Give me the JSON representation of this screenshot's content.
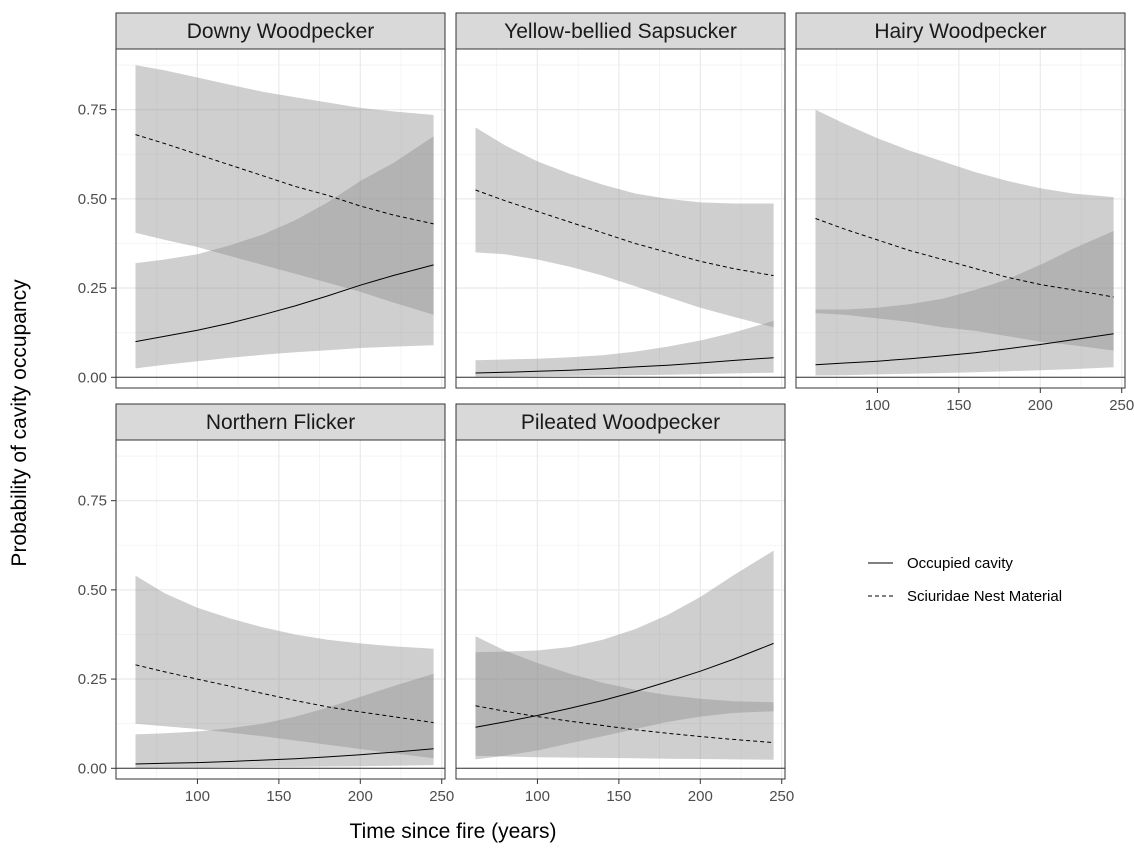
{
  "chart_data": {
    "type": "line",
    "xlabel": "Time since fire (years)",
    "ylabel": "Probability of cavity occupancy",
    "xlim": [
      50,
      252
    ],
    "ylim": [
      -0.03,
      0.92
    ],
    "x_ticks": [
      100,
      150,
      200,
      250
    ],
    "y_ticks": [
      0.0,
      0.25,
      0.5,
      0.75
    ],
    "y_tick_labels": [
      "0.00",
      "0.25",
      "0.50",
      "0.75"
    ],
    "grid": true,
    "legend": {
      "position": "right",
      "entries": [
        {
          "label": "Occupied cavity",
          "linetype": "solid"
        },
        {
          "label": "Sciuridae Nest Material",
          "linetype": "dashed"
        }
      ]
    },
    "x": [
      62,
      80,
      100,
      120,
      140,
      160,
      180,
      200,
      220,
      245
    ],
    "panels": [
      {
        "title": "Downy Woodpecker",
        "series": [
          {
            "name": "Occupied cavity",
            "values": [
              0.1,
              0.115,
              0.132,
              0.152,
              0.175,
              0.2,
              0.228,
              0.258,
              0.285,
              0.315
            ],
            "lower": [
              0.025,
              0.035,
              0.045,
              0.055,
              0.063,
              0.07,
              0.076,
              0.082,
              0.086,
              0.09
            ],
            "upper": [
              0.32,
              0.33,
              0.345,
              0.37,
              0.4,
              0.44,
              0.49,
              0.55,
              0.6,
              0.675
            ]
          },
          {
            "name": "Sciuridae Nest Material",
            "values": [
              0.68,
              0.655,
              0.625,
              0.595,
              0.565,
              0.535,
              0.51,
              0.48,
              0.455,
              0.43
            ],
            "lower": [
              0.405,
              0.385,
              0.365,
              0.34,
              0.315,
              0.29,
              0.265,
              0.24,
              0.21,
              0.175
            ],
            "upper": [
              0.875,
              0.86,
              0.84,
              0.82,
              0.8,
              0.785,
              0.77,
              0.755,
              0.745,
              0.735
            ]
          }
        ]
      },
      {
        "title": "Yellow-bellied Sapsucker",
        "series": [
          {
            "name": "Occupied cavity",
            "values": [
              0.012,
              0.014,
              0.017,
              0.02,
              0.024,
              0.029,
              0.034,
              0.04,
              0.047,
              0.055
            ],
            "lower": [
              0.002,
              0.002,
              0.003,
              0.004,
              0.005,
              0.006,
              0.007,
              0.009,
              0.011,
              0.013
            ],
            "upper": [
              0.048,
              0.05,
              0.052,
              0.056,
              0.062,
              0.072,
              0.086,
              0.103,
              0.125,
              0.158
            ]
          },
          {
            "name": "Sciuridae Nest Material",
            "values": [
              0.525,
              0.495,
              0.465,
              0.435,
              0.405,
              0.375,
              0.35,
              0.325,
              0.305,
              0.285
            ],
            "lower": [
              0.35,
              0.345,
              0.33,
              0.31,
              0.285,
              0.255,
              0.225,
              0.195,
              0.17,
              0.14
            ],
            "upper": [
              0.7,
              0.65,
              0.605,
              0.57,
              0.54,
              0.515,
              0.5,
              0.49,
              0.487,
              0.487
            ]
          }
        ]
      },
      {
        "title": "Hairy Woodpecker",
        "series": [
          {
            "name": "Occupied cavity",
            "values": [
              0.035,
              0.04,
              0.045,
              0.052,
              0.06,
              0.069,
              0.08,
              0.092,
              0.105,
              0.122
            ],
            "lower": [
              0.005,
              0.006,
              0.008,
              0.01,
              0.012,
              0.014,
              0.017,
              0.02,
              0.023,
              0.028
            ],
            "upper": [
              0.19,
              0.19,
              0.195,
              0.205,
              0.22,
              0.245,
              0.275,
              0.315,
              0.36,
              0.41
            ]
          },
          {
            "name": "Sciuridae Nest Material",
            "values": [
              0.445,
              0.415,
              0.385,
              0.355,
              0.33,
              0.305,
              0.28,
              0.26,
              0.245,
              0.225
            ],
            "lower": [
              0.18,
              0.175,
              0.165,
              0.155,
              0.14,
              0.13,
              0.115,
              0.1,
              0.09,
              0.075
            ],
            "upper": [
              0.75,
              0.71,
              0.67,
              0.635,
              0.605,
              0.575,
              0.55,
              0.53,
              0.515,
              0.505
            ]
          }
        ]
      },
      {
        "title": "Northern Flicker",
        "series": [
          {
            "name": "Occupied cavity",
            "values": [
              0.012,
              0.014,
              0.016,
              0.019,
              0.023,
              0.027,
              0.032,
              0.038,
              0.045,
              0.055
            ],
            "lower": [
              0.001,
              0.002,
              0.002,
              0.003,
              0.004,
              0.004,
              0.005,
              0.006,
              0.007,
              0.009
            ],
            "upper": [
              0.095,
              0.098,
              0.103,
              0.112,
              0.125,
              0.145,
              0.17,
              0.2,
              0.23,
              0.265
            ]
          },
          {
            "name": "Sciuridae Nest Material",
            "values": [
              0.29,
              0.27,
              0.25,
              0.23,
              0.21,
              0.19,
              0.172,
              0.158,
              0.145,
              0.128
            ],
            "lower": [
              0.125,
              0.118,
              0.11,
              0.1,
              0.09,
              0.078,
              0.066,
              0.054,
              0.042,
              0.028
            ],
            "upper": [
              0.54,
              0.49,
              0.45,
              0.42,
              0.395,
              0.375,
              0.36,
              0.35,
              0.342,
              0.335
            ]
          }
        ]
      },
      {
        "title": "Pileated Woodpecker",
        "series": [
          {
            "name": "Occupied cavity",
            "values": [
              0.115,
              0.13,
              0.148,
              0.168,
              0.19,
              0.215,
              0.243,
              0.272,
              0.305,
              0.35
            ],
            "lower": [
              0.025,
              0.035,
              0.05,
              0.07,
              0.09,
              0.11,
              0.13,
              0.145,
              0.155,
              0.16
            ],
            "upper": [
              0.325,
              0.327,
              0.33,
              0.34,
              0.36,
              0.39,
              0.43,
              0.48,
              0.54,
              0.61
            ]
          },
          {
            "name": "Sciuridae Nest Material",
            "values": [
              0.175,
              0.16,
              0.145,
              0.132,
              0.12,
              0.108,
              0.098,
              0.089,
              0.081,
              0.072
            ],
            "lower": [
              0.035,
              0.033,
              0.031,
              0.03,
              0.029,
              0.028,
              0.027,
              0.026,
              0.025,
              0.024
            ],
            "upper": [
              0.37,
              0.33,
              0.295,
              0.265,
              0.24,
              0.22,
              0.205,
              0.195,
              0.188,
              0.185
            ]
          }
        ]
      }
    ]
  }
}
